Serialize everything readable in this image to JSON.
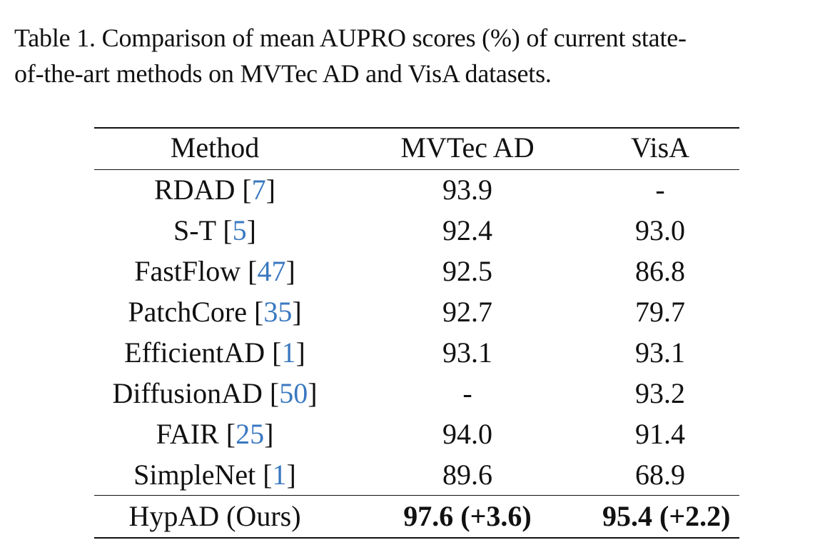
{
  "caption": "Table 1. Comparison of mean AUPRO scores (%) of current state-of-the-art methods on MVTec AD and VisA datasets.",
  "caption_lines": [
    "Table 1. Comparison of mean AUPRO scores (%) of current state-",
    "of-the-art methods on MVTec AD and VisA datasets."
  ],
  "table": {
    "headers": [
      "Method",
      "MVTec AD",
      "VisA"
    ],
    "rows": [
      {
        "method": "RDAD",
        "ref": "7",
        "mvtec": "93.9",
        "visa": "-"
      },
      {
        "method": "S-T",
        "ref": "5",
        "mvtec": "92.4",
        "visa": "93.0"
      },
      {
        "method": "FastFlow",
        "ref": "47",
        "mvtec": "92.5",
        "visa": "86.8"
      },
      {
        "method": "PatchCore",
        "ref": "35",
        "mvtec": "92.7",
        "visa": "79.7"
      },
      {
        "method": "EfficientAD",
        "ref": "1",
        "mvtec": "93.1",
        "visa": "93.1"
      },
      {
        "method": "DiffusionAD",
        "ref": "50",
        "mvtec": "-",
        "visa": "93.2"
      },
      {
        "method": "FAIR",
        "ref": "25",
        "mvtec": "94.0",
        "visa": "91.4"
      },
      {
        "method": "SimpleNet",
        "ref": "1",
        "mvtec": "89.6",
        "visa": "68.9"
      }
    ],
    "ours": {
      "method": "HypAD (Ours)",
      "mvtec": "97.6 (+3.6)",
      "visa": "95.4 (+2.2)"
    }
  },
  "colors": {
    "citation": "#3a78c0",
    "text": "#111111"
  }
}
